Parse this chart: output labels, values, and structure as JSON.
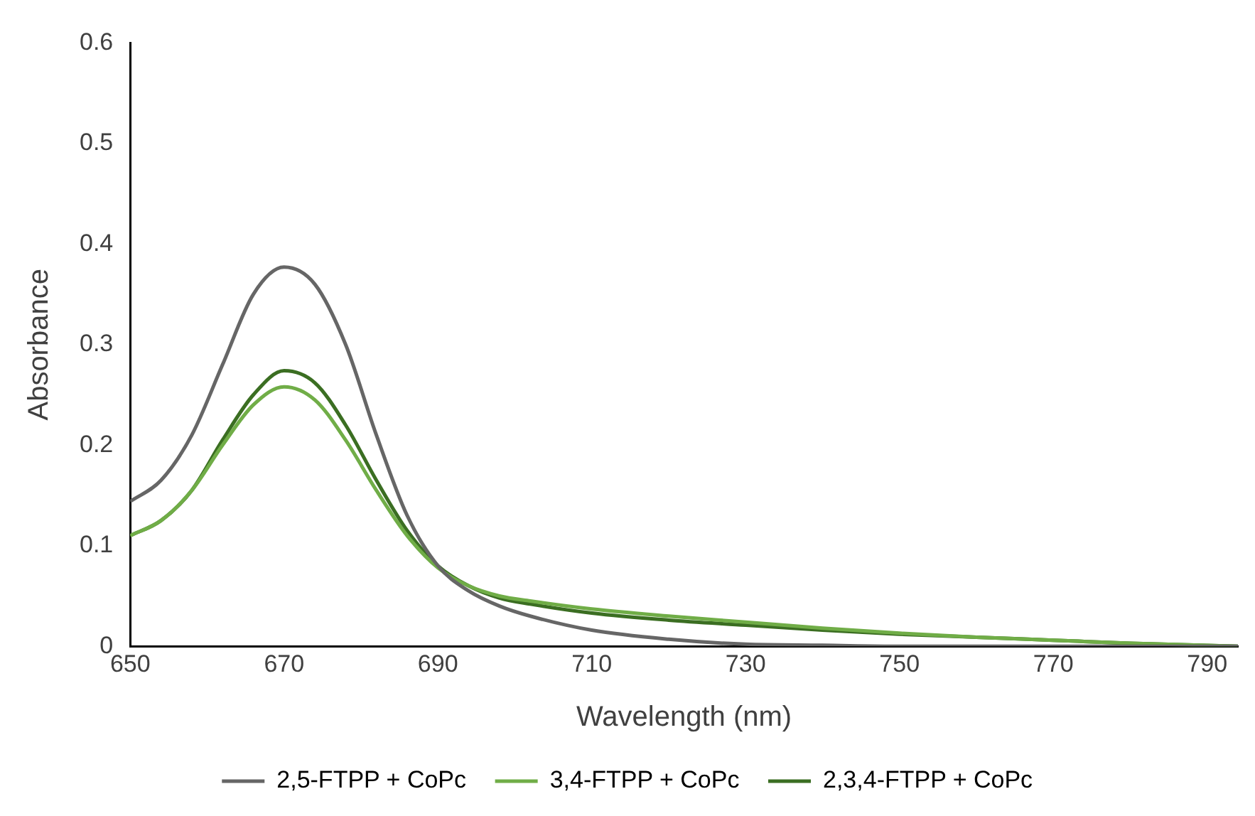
{
  "chart_data": {
    "type": "line",
    "xlabel": "Wavelength (nm)",
    "ylabel": "Absorbance",
    "x": [
      650,
      654,
      658,
      662,
      666,
      670,
      674,
      678,
      682,
      686,
      690,
      694,
      698,
      702,
      710,
      720,
      730,
      740,
      750,
      760,
      770,
      780,
      794
    ],
    "series": [
      {
        "name": "2,5-FTPP + CoPc",
        "color": "#666666",
        "values": [
          0.144,
          0.165,
          0.21,
          0.28,
          0.35,
          0.377,
          0.36,
          0.3,
          0.21,
          0.13,
          0.08,
          0.055,
          0.04,
          0.03,
          0.016,
          0.007,
          0.002,
          0.001,
          0,
          0,
          0,
          0,
          0
        ]
      },
      {
        "name": "3,4-FTPP + CoPc",
        "color": "#70ad47",
        "values": [
          0.11,
          0.125,
          0.155,
          0.2,
          0.24,
          0.258,
          0.245,
          0.205,
          0.155,
          0.11,
          0.078,
          0.06,
          0.05,
          0.045,
          0.037,
          0.03,
          0.024,
          0.018,
          0.013,
          0.009,
          0.006,
          0.003,
          0
        ]
      },
      {
        "name": "2,3,4-FTPP + CoPc",
        "color": "#3b6e22",
        "values": [
          0.11,
          0.125,
          0.155,
          0.205,
          0.25,
          0.274,
          0.262,
          0.22,
          0.165,
          0.115,
          0.08,
          0.06,
          0.048,
          0.042,
          0.033,
          0.026,
          0.021,
          0.016,
          0.012,
          0.009,
          0.006,
          0.003,
          0
        ]
      }
    ],
    "xlim": [
      650,
      794
    ],
    "xticks": [
      650,
      670,
      690,
      710,
      730,
      750,
      770,
      790
    ],
    "ylim": [
      0,
      0.6
    ],
    "yticks": [
      0,
      0.1,
      0.2,
      0.3,
      0.4,
      0.5,
      0.6
    ],
    "grid": false,
    "legend": "bottom",
    "marker": "none",
    "line_style": "solid"
  }
}
